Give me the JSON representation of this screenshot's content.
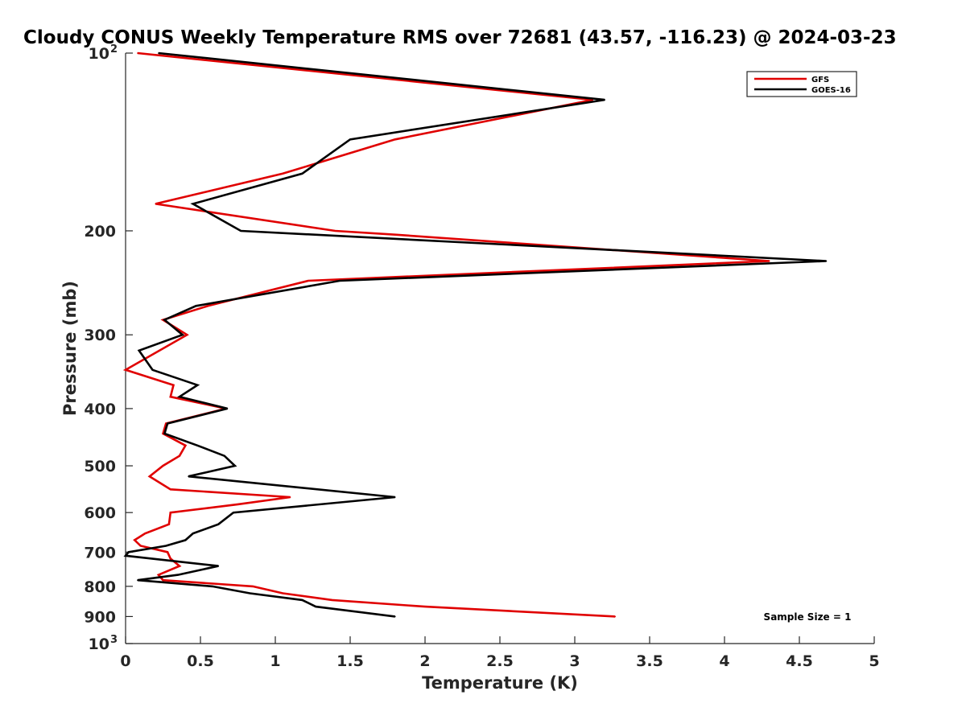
{
  "chart_data": {
    "type": "line",
    "title": "Cloudy CONUS Weekly Temperature RMS over 72681 (43.57, -116.23) @ 2024-03-23",
    "xlabel": "Temperature (K)",
    "ylabel": "Pressure (mb)",
    "xlim": [
      0,
      5
    ],
    "ylim": [
      100,
      1000
    ],
    "y_scale": "log",
    "y_reversed": true,
    "grid": false,
    "legend_position": "top-right",
    "x_ticks": [
      "0",
      "0.5",
      "1",
      "1.5",
      "2",
      "2.5",
      "3",
      "3.5",
      "4",
      "4.5",
      "5"
    ],
    "y_ticks": [
      {
        "value": 100,
        "label": "10",
        "sup": "2"
      },
      {
        "value": 200,
        "label": "200"
      },
      {
        "value": 300,
        "label": "300"
      },
      {
        "value": 400,
        "label": "400"
      },
      {
        "value": 500,
        "label": "500"
      },
      {
        "value": 600,
        "label": "600"
      },
      {
        "value": 700,
        "label": "700"
      },
      {
        "value": 800,
        "label": "800"
      },
      {
        "value": 900,
        "label": "900"
      },
      {
        "value": 1000,
        "label": "10",
        "sup": "3"
      }
    ],
    "series": [
      {
        "name": "GFS",
        "color": "#e00000",
        "points": [
          [
            0.08,
            100
          ],
          [
            3.12,
            120
          ],
          [
            1.8,
            140
          ],
          [
            1.05,
            160
          ],
          [
            0.2,
            180
          ],
          [
            1.4,
            200
          ],
          [
            1.8,
            203
          ],
          [
            4.3,
            225
          ],
          [
            1.22,
            243
          ],
          [
            0.55,
            268
          ],
          [
            0.25,
            283
          ],
          [
            0.41,
            300
          ],
          [
            0.0,
            344
          ],
          [
            0.32,
            365
          ],
          [
            0.3,
            382
          ],
          [
            0.67,
            400
          ],
          [
            0.27,
            424
          ],
          [
            0.25,
            441
          ],
          [
            0.4,
            462
          ],
          [
            0.36,
            481
          ],
          [
            0.25,
            500
          ],
          [
            0.16,
            521
          ],
          [
            0.3,
            548
          ],
          [
            1.1,
            565
          ],
          [
            0.75,
            581
          ],
          [
            0.3,
            600
          ],
          [
            0.29,
            628
          ],
          [
            0.13,
            651
          ],
          [
            0.06,
            668
          ],
          [
            0.1,
            683
          ],
          [
            0.28,
            700
          ],
          [
            0.3,
            718
          ],
          [
            0.36,
            739
          ],
          [
            0.22,
            765
          ],
          [
            0.25,
            781
          ],
          [
            0.85,
            800
          ],
          [
            1.05,
            822
          ],
          [
            1.38,
            844
          ],
          [
            2.0,
            866
          ],
          [
            3.27,
            900
          ]
        ]
      },
      {
        "name": "GOES-16",
        "color": "#000000",
        "points": [
          [
            0.22,
            100
          ],
          [
            3.2,
            120
          ],
          [
            1.5,
            140
          ],
          [
            1.18,
            160
          ],
          [
            0.45,
            180
          ],
          [
            0.77,
            200
          ],
          [
            4.68,
            225
          ],
          [
            1.43,
            243
          ],
          [
            0.47,
            268
          ],
          [
            0.26,
            283
          ],
          [
            0.38,
            300
          ],
          [
            0.09,
            319
          ],
          [
            0.18,
            344
          ],
          [
            0.48,
            365
          ],
          [
            0.36,
            382
          ],
          [
            0.68,
            400
          ],
          [
            0.28,
            424
          ],
          [
            0.26,
            441
          ],
          [
            0.48,
            462
          ],
          [
            0.66,
            481
          ],
          [
            0.73,
            500
          ],
          [
            0.42,
            521
          ],
          [
            1.8,
            565
          ],
          [
            0.72,
            600
          ],
          [
            0.62,
            628
          ],
          [
            0.45,
            651
          ],
          [
            0.4,
            668
          ],
          [
            0.27,
            683
          ],
          [
            0.02,
            700
          ],
          [
            0.0,
            710
          ],
          [
            0.62,
            739
          ],
          [
            0.35,
            765
          ],
          [
            0.08,
            781
          ],
          [
            0.58,
            800
          ],
          [
            0.83,
            822
          ],
          [
            1.18,
            844
          ],
          [
            1.27,
            866
          ],
          [
            1.8,
            900
          ]
        ]
      }
    ],
    "annotations": [
      "Sample Size = 1"
    ]
  }
}
